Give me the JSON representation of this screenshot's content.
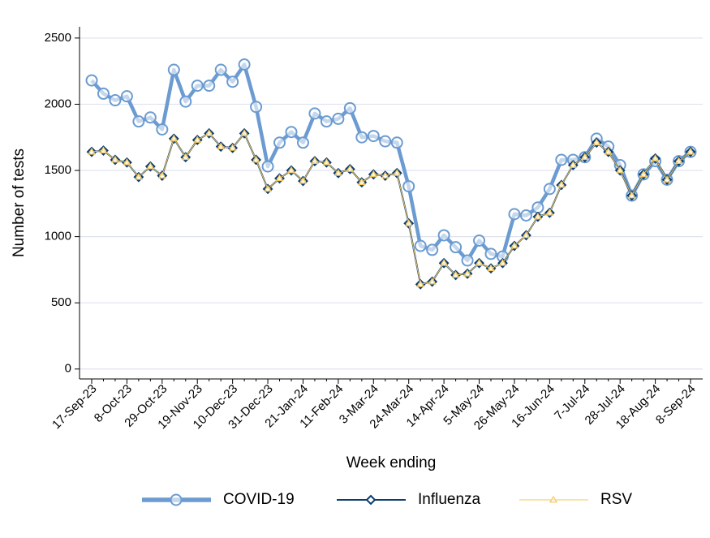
{
  "chart_data": {
    "type": "line",
    "x_label": "Week ending",
    "y_label": "Number of tests",
    "categories": [
      "17-Sep-23",
      null,
      null,
      "8-Oct-23",
      null,
      null,
      "29-Oct-23",
      null,
      null,
      "19-Nov-23",
      null,
      null,
      "10-Dec-23",
      null,
      null,
      "31-Dec-23",
      null,
      null,
      "21-Jan-24",
      null,
      null,
      "11-Feb-24",
      null,
      null,
      "3-Mar-24",
      null,
      null,
      "24-Mar-24",
      null,
      null,
      "14-Apr-24",
      null,
      null,
      "5-May-24",
      null,
      null,
      "26-May-24",
      null,
      null,
      "16-Jun-24",
      null,
      null,
      "7-Jul-24",
      null,
      null,
      "28-Jul-24",
      null,
      null,
      "18-Aug-24",
      null,
      null,
      "8-Sep-24"
    ],
    "series": [
      {
        "name": "COVID-19",
        "color": "#6b9bd1",
        "marker": "circle",
        "values": [
          2180,
          2080,
          2030,
          2060,
          1870,
          1900,
          1810,
          2260,
          2020,
          2140,
          2140,
          2260,
          2170,
          2300,
          1980,
          1530,
          1710,
          1790,
          1710,
          1930,
          1870,
          1890,
          1970,
          1750,
          1760,
          1720,
          1710,
          1380,
          930,
          900,
          1010,
          920,
          820,
          970,
          870,
          850,
          1170,
          1160,
          1220,
          1360,
          1580,
          1580,
          1600,
          1740,
          1680,
          1540,
          1310,
          1470,
          1570,
          1430,
          1570,
          1640
        ]
      },
      {
        "name": "Influenza",
        "color": "#0c3c70",
        "marker": "diamond",
        "values": [
          1640,
          1650,
          1580,
          1560,
          1450,
          1530,
          1460,
          1740,
          1600,
          1730,
          1780,
          1680,
          1670,
          1780,
          1580,
          1360,
          1440,
          1500,
          1420,
          1570,
          1560,
          1480,
          1510,
          1410,
          1470,
          1460,
          1480,
          1100,
          640,
          660,
          800,
          710,
          720,
          800,
          760,
          800,
          930,
          1010,
          1150,
          1180,
          1390,
          1540,
          1600,
          1710,
          1640,
          1500,
          1310,
          1470,
          1590,
          1430,
          1570,
          1640
        ]
      },
      {
        "name": "RSV",
        "color": "#f2c75c",
        "marker": "triangle",
        "values": [
          1640,
          1650,
          1580,
          1560,
          1450,
          1530,
          1460,
          1740,
          1600,
          1730,
          1780,
          1680,
          1670,
          1780,
          1580,
          1360,
          1440,
          1500,
          1420,
          1570,
          1560,
          1480,
          1510,
          1410,
          1470,
          1460,
          1480,
          1100,
          640,
          660,
          800,
          710,
          720,
          800,
          760,
          800,
          930,
          1010,
          1150,
          1180,
          1390,
          1540,
          1600,
          1710,
          1640,
          1500,
          1310,
          1470,
          1590,
          1430,
          1570,
          1640
        ]
      }
    ],
    "ylim": [
      -75,
      2585
    ],
    "yticks": [
      0,
      500,
      1000,
      1500,
      2000,
      2500
    ],
    "grid": true,
    "legend": "bottom"
  }
}
